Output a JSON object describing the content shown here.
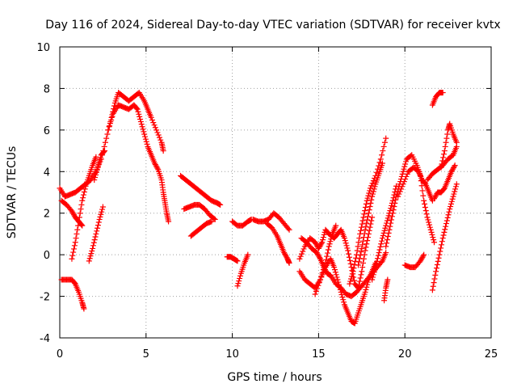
{
  "chart_data": {
    "type": "scatter",
    "title": "Day 116 of 2024, Sidereal Day-to-day VTEC variation (SDTVAR) for receiver kvtx",
    "xlabel": "GPS time / hours",
    "ylabel": "SDTVAR / TECUs",
    "xlim": [
      0,
      25
    ],
    "ylim": [
      -4,
      10
    ],
    "xticks": [
      "0",
      "5",
      "10",
      "15",
      "20",
      "25"
    ],
    "yticks": [
      "-4",
      "-2",
      "0",
      "2",
      "4",
      "6",
      "8",
      "10"
    ],
    "grid": true,
    "marker": "+",
    "marker_color": "#ff0000",
    "segments": [
      {
        "name": "main-arc-a",
        "points": [
          [
            0.0,
            3.2
          ],
          [
            0.3,
            2.8
          ],
          [
            0.6,
            2.9
          ],
          [
            0.9,
            3.0
          ],
          [
            1.2,
            3.2
          ],
          [
            1.5,
            3.4
          ],
          [
            1.8,
            3.6
          ],
          [
            2.1,
            4.0
          ],
          [
            2.4,
            4.6
          ],
          [
            2.7,
            5.6
          ],
          [
            3.0,
            6.6
          ],
          [
            3.2,
            7.3
          ],
          [
            3.4,
            7.8
          ],
          [
            3.7,
            7.6
          ],
          [
            4.0,
            7.4
          ],
          [
            4.3,
            7.6
          ],
          [
            4.6,
            7.8
          ],
          [
            4.9,
            7.4
          ],
          [
            5.1,
            7.0
          ],
          [
            5.3,
            6.6
          ],
          [
            5.6,
            6.0
          ],
          [
            5.9,
            5.4
          ],
          [
            6.0,
            5.0
          ]
        ]
      },
      {
        "name": "main-arc-b",
        "points": [
          [
            2.8,
            6.0
          ],
          [
            3.1,
            6.8
          ],
          [
            3.4,
            7.2
          ],
          [
            3.7,
            7.1
          ],
          [
            4.0,
            7.0
          ],
          [
            4.3,
            7.2
          ],
          [
            4.5,
            7.0
          ],
          [
            4.7,
            6.4
          ],
          [
            4.9,
            5.8
          ],
          [
            5.1,
            5.2
          ],
          [
            5.3,
            4.8
          ],
          [
            5.5,
            4.4
          ],
          [
            5.7,
            4.1
          ],
          [
            5.9,
            3.6
          ],
          [
            6.0,
            3.0
          ],
          [
            6.1,
            2.5
          ],
          [
            6.2,
            2.0
          ],
          [
            6.3,
            1.6
          ]
        ]
      },
      {
        "name": "early-a",
        "points": [
          [
            0.1,
            2.6
          ],
          [
            0.4,
            2.4
          ],
          [
            0.7,
            2.1
          ],
          [
            0.9,
            1.8
          ],
          [
            1.1,
            1.6
          ],
          [
            1.3,
            1.4
          ]
        ]
      },
      {
        "name": "early-b",
        "points": [
          [
            0.1,
            -1.2
          ],
          [
            0.4,
            -1.2
          ],
          [
            0.7,
            -1.2
          ],
          [
            0.9,
            -1.4
          ],
          [
            1.1,
            -1.8
          ],
          [
            1.3,
            -2.3
          ],
          [
            1.4,
            -2.6
          ]
        ]
      },
      {
        "name": "early-c",
        "points": [
          [
            0.7,
            -0.2
          ],
          [
            0.9,
            0.6
          ],
          [
            1.1,
            1.6
          ],
          [
            1.3,
            2.6
          ],
          [
            1.5,
            3.3
          ],
          [
            1.7,
            3.8
          ],
          [
            1.9,
            4.3
          ],
          [
            2.1,
            4.7
          ]
        ]
      },
      {
        "name": "early-d",
        "points": [
          [
            1.7,
            -0.3
          ],
          [
            1.9,
            0.3
          ],
          [
            2.1,
            1.0
          ],
          [
            2.3,
            1.7
          ],
          [
            2.5,
            2.3
          ]
        ]
      },
      {
        "name": "early-e",
        "points": [
          [
            2.0,
            3.6
          ],
          [
            2.2,
            4.2
          ],
          [
            2.4,
            4.8
          ],
          [
            2.6,
            5.0
          ]
        ]
      },
      {
        "name": "mid-a",
        "points": [
          [
            7.0,
            3.8
          ],
          [
            7.3,
            3.6
          ],
          [
            7.6,
            3.4
          ],
          [
            7.9,
            3.2
          ],
          [
            8.2,
            3.0
          ],
          [
            8.5,
            2.8
          ],
          [
            8.8,
            2.6
          ],
          [
            9.1,
            2.5
          ],
          [
            9.3,
            2.4
          ]
        ]
      },
      {
        "name": "mid-b",
        "points": [
          [
            7.2,
            2.2
          ],
          [
            7.5,
            2.3
          ],
          [
            7.8,
            2.4
          ],
          [
            8.1,
            2.4
          ],
          [
            8.4,
            2.2
          ],
          [
            8.7,
            1.9
          ],
          [
            9.0,
            1.7
          ]
        ]
      },
      {
        "name": "mid-c",
        "points": [
          [
            7.6,
            0.9
          ],
          [
            7.9,
            1.1
          ],
          [
            8.2,
            1.3
          ],
          [
            8.5,
            1.5
          ],
          [
            8.8,
            1.6
          ]
        ]
      },
      {
        "name": "mid-d",
        "points": [
          [
            9.7,
            -0.1
          ],
          [
            9.9,
            -0.1
          ],
          [
            10.1,
            -0.2
          ],
          [
            10.3,
            -0.3
          ]
        ]
      },
      {
        "name": "mid-e",
        "points": [
          [
            10.0,
            1.6
          ],
          [
            10.3,
            1.4
          ],
          [
            10.6,
            1.4
          ],
          [
            10.9,
            1.6
          ],
          [
            11.1,
            1.7
          ]
        ]
      },
      {
        "name": "mid-f",
        "points": [
          [
            10.3,
            -1.5
          ],
          [
            10.5,
            -0.9
          ],
          [
            10.7,
            -0.4
          ],
          [
            10.9,
            0.0
          ]
        ]
      },
      {
        "name": "mid-g",
        "points": [
          [
            11.2,
            1.7
          ],
          [
            11.5,
            1.6
          ],
          [
            11.8,
            1.6
          ],
          [
            12.1,
            1.7
          ],
          [
            12.4,
            2.0
          ],
          [
            12.7,
            1.8
          ],
          [
            13.0,
            1.5
          ],
          [
            13.3,
            1.2
          ]
        ]
      },
      {
        "name": "mid-h",
        "points": [
          [
            12.0,
            1.5
          ],
          [
            12.3,
            1.3
          ],
          [
            12.6,
            0.9
          ],
          [
            12.8,
            0.5
          ],
          [
            13.0,
            0.1
          ],
          [
            13.2,
            -0.2
          ],
          [
            13.3,
            -0.4
          ]
        ]
      },
      {
        "name": "late-a",
        "points": [
          [
            13.9,
            -0.8
          ],
          [
            14.2,
            -1.2
          ],
          [
            14.5,
            -1.4
          ],
          [
            14.8,
            -1.6
          ],
          [
            15.1,
            -1.2
          ],
          [
            15.4,
            -0.6
          ],
          [
            15.7,
            -0.2
          ],
          [
            15.9,
            -0.6
          ],
          [
            16.1,
            -1.2
          ],
          [
            16.3,
            -1.8
          ],
          [
            16.5,
            -2.4
          ],
          [
            16.7,
            -2.8
          ],
          [
            16.9,
            -3.2
          ],
          [
            17.1,
            -3.3
          ],
          [
            17.3,
            -2.8
          ],
          [
            17.5,
            -2.3
          ],
          [
            17.7,
            -1.8
          ],
          [
            17.9,
            -1.2
          ],
          [
            18.1,
            -0.8
          ],
          [
            18.3,
            -0.4
          ]
        ]
      },
      {
        "name": "late-b",
        "points": [
          [
            14.0,
            0.8
          ],
          [
            14.3,
            0.6
          ],
          [
            14.6,
            0.3
          ],
          [
            14.9,
            0.1
          ],
          [
            15.1,
            -0.2
          ],
          [
            15.3,
            -0.6
          ],
          [
            15.5,
            -0.9
          ],
          [
            15.7,
            -1.0
          ],
          [
            16.0,
            -1.4
          ],
          [
            16.3,
            -1.6
          ],
          [
            16.6,
            -1.9
          ],
          [
            16.9,
            -2.0
          ],
          [
            17.2,
            -1.8
          ],
          [
            17.5,
            -1.5
          ],
          [
            17.8,
            -1.2
          ],
          [
            18.1,
            -0.9
          ],
          [
            18.4,
            -0.6
          ],
          [
            18.7,
            -0.3
          ],
          [
            18.9,
            0.1
          ]
        ]
      },
      {
        "name": "late-c",
        "points": [
          [
            13.9,
            -0.2
          ],
          [
            14.2,
            0.4
          ],
          [
            14.5,
            0.8
          ],
          [
            14.8,
            0.6
          ],
          [
            15.0,
            0.3
          ],
          [
            15.2,
            0.6
          ],
          [
            15.4,
            1.2
          ],
          [
            15.6,
            1.0
          ],
          [
            15.9,
            0.8
          ],
          [
            16.1,
            1.0
          ],
          [
            16.3,
            1.2
          ],
          [
            16.5,
            0.8
          ],
          [
            16.7,
            0.2
          ],
          [
            16.9,
            -0.6
          ],
          [
            17.1,
            -1.4
          ],
          [
            17.3,
            -1.6
          ],
          [
            17.5,
            -0.8
          ],
          [
            17.7,
            0.2
          ],
          [
            17.9,
            1.0
          ],
          [
            18.1,
            1.8
          ]
        ]
      },
      {
        "name": "late-d",
        "points": [
          [
            14.8,
            -1.9
          ],
          [
            15.1,
            -1.2
          ],
          [
            15.4,
            -0.4
          ],
          [
            15.6,
            0.4
          ],
          [
            15.8,
            1.0
          ],
          [
            16.0,
            1.4
          ]
        ]
      },
      {
        "name": "late-e",
        "points": [
          [
            16.8,
            -1.4
          ],
          [
            17.0,
            -0.8
          ],
          [
            17.2,
            0.0
          ],
          [
            17.4,
            1.0
          ],
          [
            17.6,
            1.8
          ],
          [
            17.8,
            2.6
          ],
          [
            18.0,
            3.2
          ],
          [
            18.3,
            3.8
          ],
          [
            18.6,
            4.6
          ],
          [
            18.9,
            5.6
          ]
        ]
      },
      {
        "name": "late-f",
        "points": [
          [
            17.3,
            -0.5
          ],
          [
            17.5,
            0.3
          ],
          [
            17.7,
            1.2
          ],
          [
            17.9,
            2.0
          ],
          [
            18.1,
            2.8
          ],
          [
            18.3,
            3.4
          ],
          [
            18.5,
            3.9
          ],
          [
            18.7,
            4.4
          ]
        ]
      },
      {
        "name": "late-g",
        "points": [
          [
            18.1,
            -1.2
          ],
          [
            18.3,
            -0.6
          ],
          [
            18.5,
            0.1
          ],
          [
            18.7,
            0.8
          ],
          [
            18.9,
            1.4
          ],
          [
            19.1,
            2.0
          ],
          [
            19.3,
            2.6
          ],
          [
            19.5,
            3.3
          ]
        ]
      },
      {
        "name": "late-h",
        "points": [
          [
            18.9,
            0.4
          ],
          [
            19.1,
            1.2
          ],
          [
            19.3,
            2.0
          ],
          [
            19.5,
            2.8
          ],
          [
            19.7,
            3.4
          ],
          [
            19.9,
            4.0
          ],
          [
            20.1,
            4.6
          ],
          [
            20.4,
            4.8
          ],
          [
            20.7,
            4.3
          ],
          [
            20.9,
            3.8
          ],
          [
            21.1,
            2.6
          ],
          [
            21.3,
            1.8
          ],
          [
            21.5,
            1.2
          ],
          [
            21.7,
            0.6
          ]
        ]
      },
      {
        "name": "late-i",
        "points": [
          [
            19.6,
            2.8
          ],
          [
            19.9,
            3.4
          ],
          [
            20.2,
            4.0
          ],
          [
            20.5,
            4.2
          ],
          [
            20.8,
            4.0
          ],
          [
            21.0,
            3.6
          ],
          [
            21.2,
            3.4
          ],
          [
            21.4,
            3.0
          ],
          [
            21.6,
            2.6
          ]
        ]
      },
      {
        "name": "late-j",
        "points": [
          [
            20.0,
            -0.5
          ],
          [
            20.3,
            -0.6
          ],
          [
            20.6,
            -0.6
          ],
          [
            20.9,
            -0.3
          ],
          [
            21.1,
            0.0
          ]
        ]
      },
      {
        "name": "late-k",
        "points": [
          [
            18.8,
            -2.2
          ],
          [
            18.9,
            -1.6
          ],
          [
            19.0,
            -1.2
          ]
        ]
      },
      {
        "name": "late-l",
        "points": [
          [
            21.3,
            3.6
          ],
          [
            21.6,
            3.9
          ],
          [
            21.9,
            4.1
          ],
          [
            22.2,
            4.3
          ],
          [
            22.5,
            4.6
          ],
          [
            22.8,
            4.8
          ],
          [
            23.0,
            5.2
          ]
        ]
      },
      {
        "name": "late-m",
        "points": [
          [
            21.6,
            -1.7
          ],
          [
            21.8,
            -0.8
          ],
          [
            22.0,
            0.0
          ],
          [
            22.2,
            0.8
          ],
          [
            22.4,
            1.5
          ],
          [
            22.6,
            2.2
          ],
          [
            22.8,
            2.8
          ],
          [
            23.0,
            3.4
          ]
        ]
      },
      {
        "name": "late-n",
        "points": [
          [
            21.7,
            2.7
          ],
          [
            21.9,
            3.0
          ],
          [
            22.1,
            3.0
          ],
          [
            22.3,
            3.2
          ],
          [
            22.5,
            3.6
          ],
          [
            22.7,
            4.0
          ],
          [
            22.9,
            4.3
          ]
        ]
      },
      {
        "name": "late-o",
        "points": [
          [
            21.6,
            7.2
          ],
          [
            21.8,
            7.6
          ],
          [
            22.0,
            7.8
          ],
          [
            22.2,
            7.8
          ]
        ]
      },
      {
        "name": "late-p",
        "points": [
          [
            22.1,
            4.2
          ],
          [
            22.3,
            5.0
          ],
          [
            22.5,
            6.0
          ],
          [
            22.6,
            6.3
          ],
          [
            22.8,
            5.8
          ],
          [
            23.0,
            5.4
          ]
        ]
      }
    ]
  }
}
